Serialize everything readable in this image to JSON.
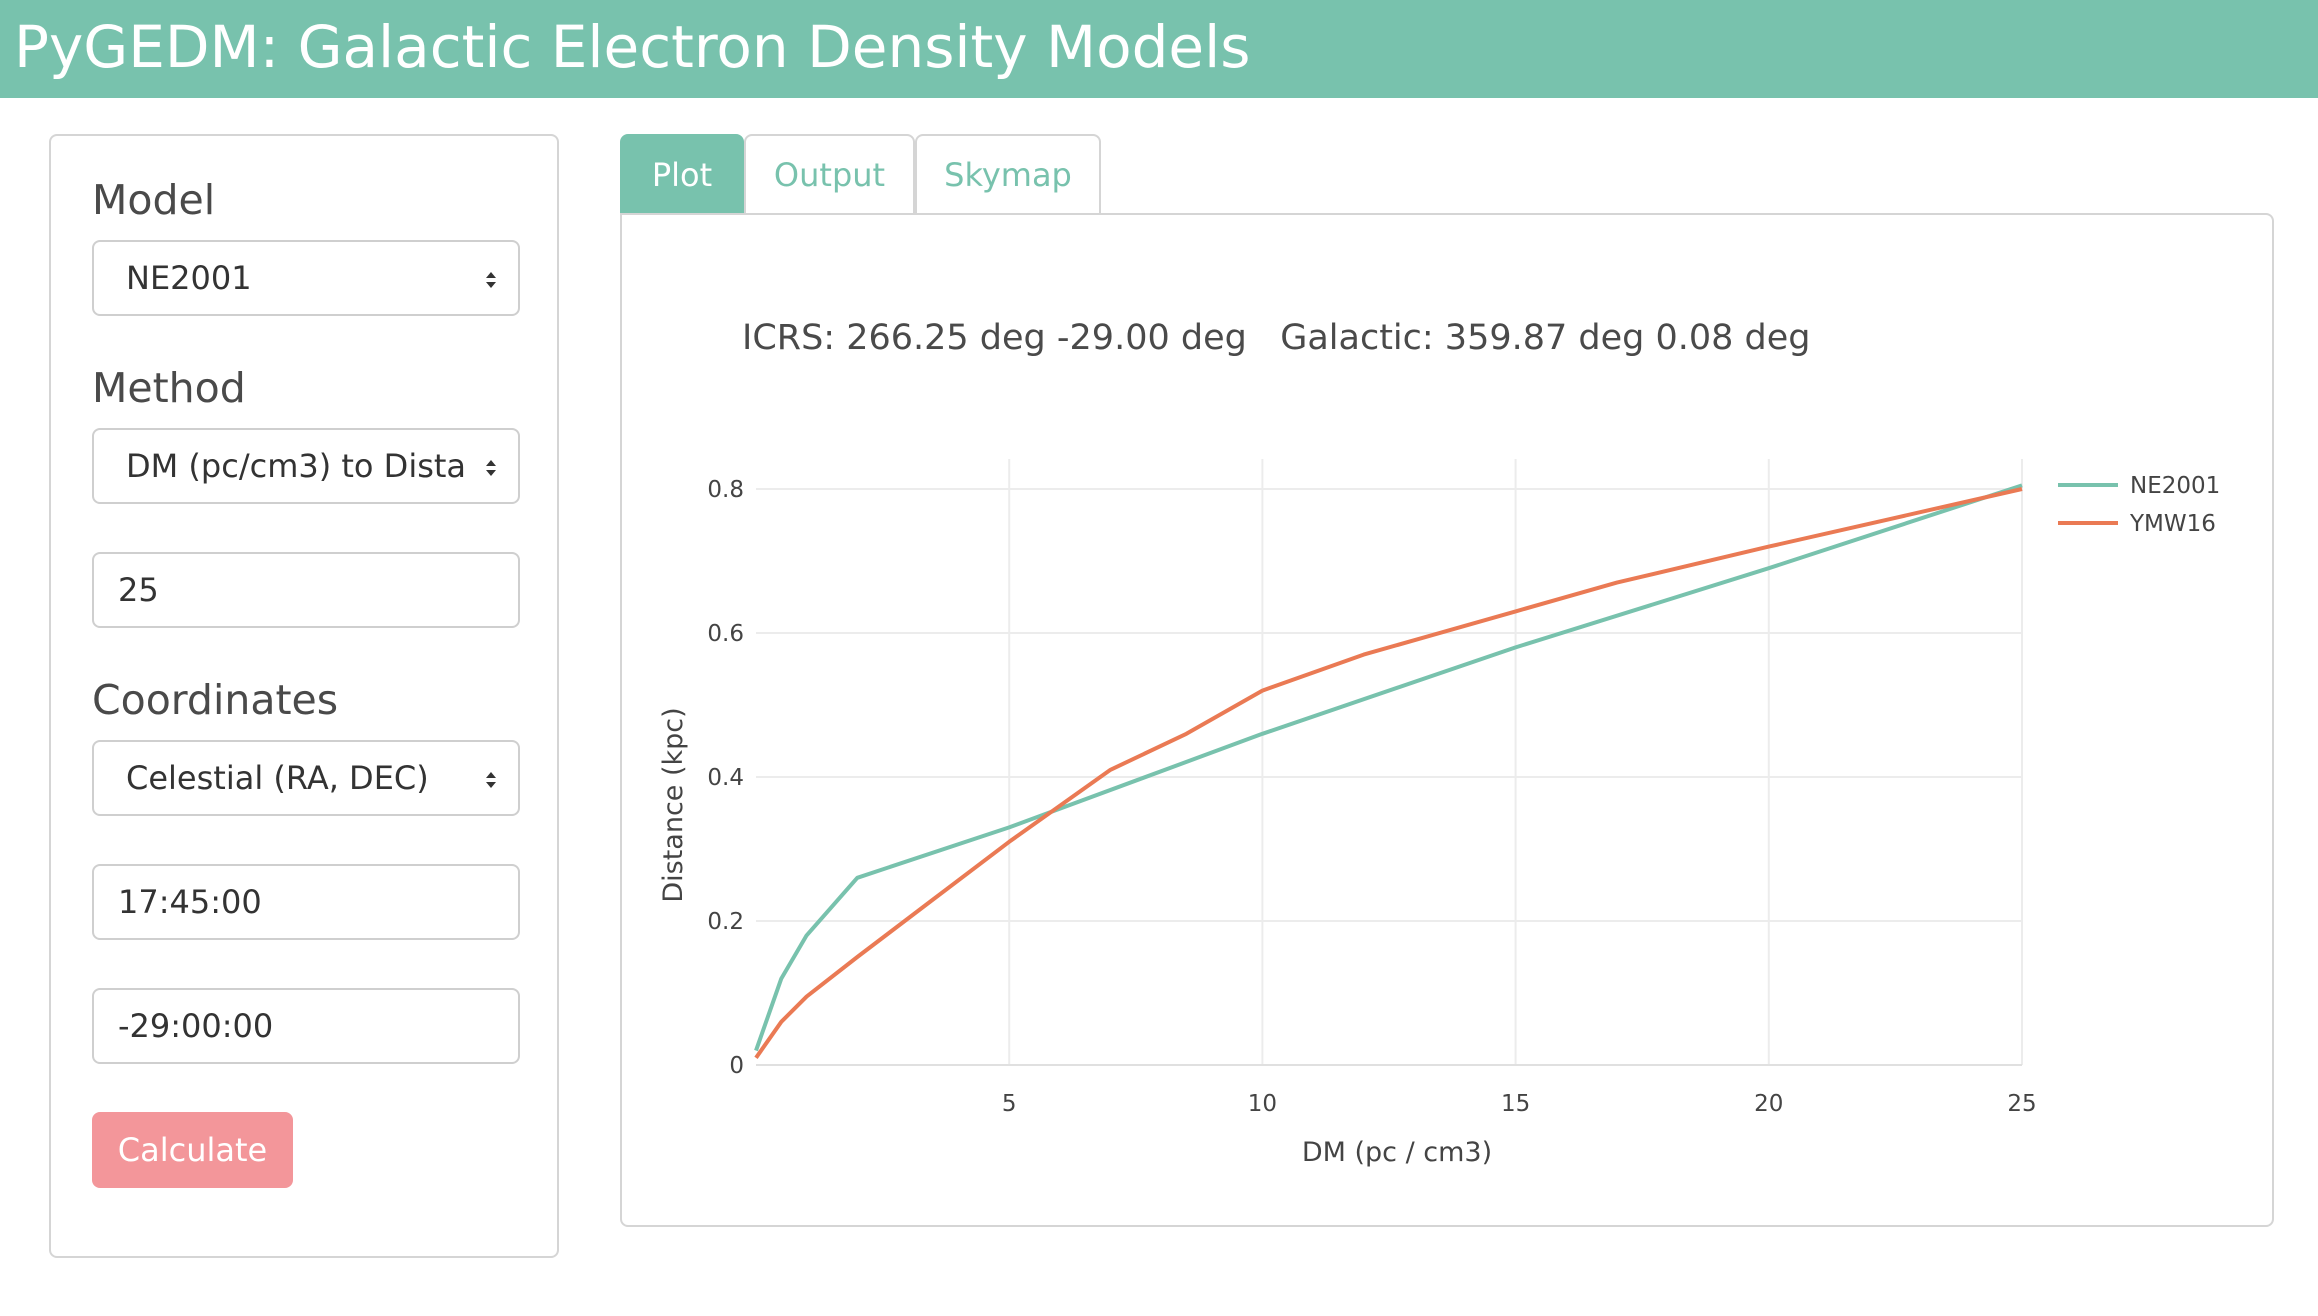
{
  "header": {
    "title": "PyGEDM: Galactic Electron Density Models"
  },
  "sidebar": {
    "model_label": "Model",
    "model_value": "NE2001",
    "method_label": "Method",
    "method_value": "DM (pc/cm3) to Dista",
    "dm_value": "25",
    "coords_label": "Coordinates",
    "coords_value": "Celestial (RA, DEC)",
    "ra_value": "17:45:00",
    "dec_value": "-29:00:00",
    "calculate_label": "Calculate"
  },
  "tabs": [
    {
      "label": "Plot",
      "active": true
    },
    {
      "label": "Output",
      "active": false
    },
    {
      "label": "Skymap",
      "active": false
    }
  ],
  "panel": {
    "icrs_text": "ICRS: 266.25 deg  -29.00 deg",
    "galactic_text": "Galactic: 359.87 deg 0.08 deg"
  },
  "colors": {
    "accent": "#78c2ad",
    "button": "#f3969a",
    "ymw16": "#ea7a54",
    "ne2001": "#78c2ad"
  },
  "chart_data": {
    "type": "line",
    "title": "",
    "xlabel": "DM (pc / cm3)",
    "ylabel": "Distance (kpc)",
    "xlim": [
      0,
      25
    ],
    "ylim": [
      0,
      0.8
    ],
    "xticks": [
      5,
      10,
      15,
      20,
      25
    ],
    "yticks": [
      0,
      0.2,
      0.4,
      0.6,
      0.8
    ],
    "xtick_labels": [
      "5",
      "10",
      "15",
      "20",
      "25"
    ],
    "ytick_labels": [
      "0",
      "0.2",
      "0.4",
      "0.6",
      "0.8"
    ],
    "grid": true,
    "legend_position": "top-right",
    "series": [
      {
        "name": "NE2001",
        "color": "#78c2ad",
        "x": [
          0,
          0.5,
          1,
          2,
          5,
          10,
          15,
          20,
          25
        ],
        "y": [
          0.02,
          0.12,
          0.18,
          0.26,
          0.33,
          0.46,
          0.58,
          0.69,
          0.805
        ]
      },
      {
        "name": "YMW16",
        "color": "#ea7a54",
        "x": [
          0,
          0.5,
          1,
          2,
          3.5,
          5,
          7,
          8.5,
          10,
          12,
          15,
          17,
          20,
          25
        ],
        "y": [
          0.01,
          0.06,
          0.095,
          0.15,
          0.23,
          0.31,
          0.41,
          0.46,
          0.52,
          0.57,
          0.63,
          0.67,
          0.72,
          0.8
        ]
      }
    ]
  }
}
